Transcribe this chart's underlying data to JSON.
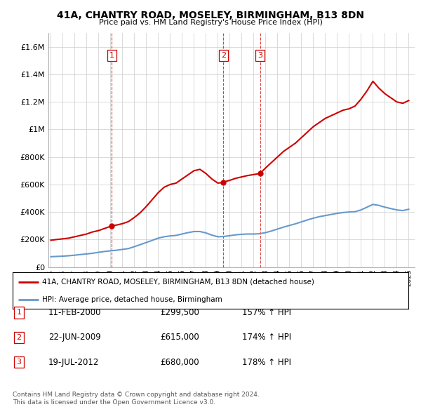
{
  "title": "41A, CHANTRY ROAD, MOSELEY, BIRMINGHAM, B13 8DN",
  "subtitle": "Price paid vs. HM Land Registry's House Price Index (HPI)",
  "ylabel_ticks": [
    "£0",
    "£200K",
    "£400K",
    "£600K",
    "£800K",
    "£1M",
    "£1.2M",
    "£1.4M",
    "£1.6M"
  ],
  "ylim": [
    0,
    1700000
  ],
  "yticks": [
    0,
    200000,
    400000,
    600000,
    800000,
    1000000,
    1200000,
    1400000,
    1600000
  ],
  "xmin": 1994.8,
  "xmax": 2025.5,
  "sales": [
    {
      "num": 1,
      "year": 2000.11,
      "price": 299500,
      "label": "1",
      "date": "11-FEB-2000",
      "pct": "157%"
    },
    {
      "num": 2,
      "year": 2009.47,
      "price": 615000,
      "label": "2",
      "date": "22-JUN-2009",
      "pct": "174%"
    },
    {
      "num": 3,
      "year": 2012.54,
      "price": 680000,
      "label": "3",
      "date": "19-JUL-2012",
      "pct": "178%"
    }
  ],
  "legend_entries": [
    "41A, CHANTRY ROAD, MOSELEY, BIRMINGHAM, B13 8DN (detached house)",
    "HPI: Average price, detached house, Birmingham"
  ],
  "footer1": "Contains HM Land Registry data © Crown copyright and database right 2024.",
  "footer2": "This data is licensed under the Open Government Licence v3.0.",
  "red_color": "#cc0000",
  "blue_color": "#6699cc",
  "background_color": "#ffffff",
  "grid_color": "#cccccc",
  "hpi_red_line": {
    "x": [
      1995.0,
      1995.5,
      1996.0,
      1996.5,
      1997.0,
      1997.5,
      1998.0,
      1998.5,
      1999.0,
      1999.5,
      2000.11,
      2000.5,
      2001.0,
      2001.5,
      2002.0,
      2002.5,
      2003.0,
      2003.5,
      2004.0,
      2004.5,
      2005.0,
      2005.5,
      2006.0,
      2006.5,
      2007.0,
      2007.5,
      2008.0,
      2008.5,
      2009.0,
      2009.47,
      2009.5,
      2010.0,
      2010.5,
      2011.0,
      2011.5,
      2012.0,
      2012.54,
      2013.0,
      2013.5,
      2014.0,
      2014.5,
      2015.0,
      2015.5,
      2016.0,
      2016.5,
      2017.0,
      2017.5,
      2018.0,
      2018.5,
      2019.0,
      2019.5,
      2020.0,
      2020.5,
      2021.0,
      2021.5,
      2022.0,
      2022.5,
      2023.0,
      2023.5,
      2024.0,
      2024.5,
      2025.0
    ],
    "y": [
      195000,
      200000,
      205000,
      210000,
      220000,
      230000,
      240000,
      255000,
      265000,
      280000,
      299500,
      305000,
      315000,
      330000,
      360000,
      395000,
      440000,
      490000,
      540000,
      580000,
      600000,
      610000,
      640000,
      670000,
      700000,
      710000,
      680000,
      640000,
      610000,
      615000,
      618000,
      630000,
      645000,
      655000,
      665000,
      672000,
      680000,
      720000,
      760000,
      800000,
      840000,
      870000,
      900000,
      940000,
      980000,
      1020000,
      1050000,
      1080000,
      1100000,
      1120000,
      1140000,
      1150000,
      1170000,
      1220000,
      1280000,
      1350000,
      1300000,
      1260000,
      1230000,
      1200000,
      1190000,
      1210000
    ]
  },
  "hpi_blue_line": {
    "x": [
      1995.0,
      1995.5,
      1996.0,
      1996.5,
      1997.0,
      1997.5,
      1998.0,
      1998.5,
      1999.0,
      1999.5,
      2000.0,
      2000.5,
      2001.0,
      2001.5,
      2002.0,
      2002.5,
      2003.0,
      2003.5,
      2004.0,
      2004.5,
      2005.0,
      2005.5,
      2006.0,
      2006.5,
      2007.0,
      2007.5,
      2008.0,
      2008.5,
      2009.0,
      2009.5,
      2010.0,
      2010.5,
      2011.0,
      2011.5,
      2012.0,
      2012.5,
      2013.0,
      2013.5,
      2014.0,
      2014.5,
      2015.0,
      2015.5,
      2016.0,
      2016.5,
      2017.0,
      2017.5,
      2018.0,
      2018.5,
      2019.0,
      2019.5,
      2020.0,
      2020.5,
      2021.0,
      2021.5,
      2022.0,
      2022.5,
      2023.0,
      2023.5,
      2024.0,
      2024.5,
      2025.0
    ],
    "y": [
      75000,
      77000,
      79000,
      82000,
      86000,
      91000,
      95000,
      100000,
      107000,
      113000,
      118000,
      122000,
      128000,
      134000,
      148000,
      163000,
      178000,
      194000,
      210000,
      220000,
      226000,
      230000,
      240000,
      250000,
      258000,
      258000,
      248000,
      232000,
      220000,
      222000,
      228000,
      234000,
      238000,
      240000,
      240000,
      242000,
      250000,
      262000,
      276000,
      290000,
      302000,
      314000,
      328000,
      342000,
      355000,
      366000,
      374000,
      382000,
      390000,
      396000,
      400000,
      402000,
      415000,
      435000,
      455000,
      448000,
      435000,
      425000,
      415000,
      410000,
      420000
    ]
  }
}
